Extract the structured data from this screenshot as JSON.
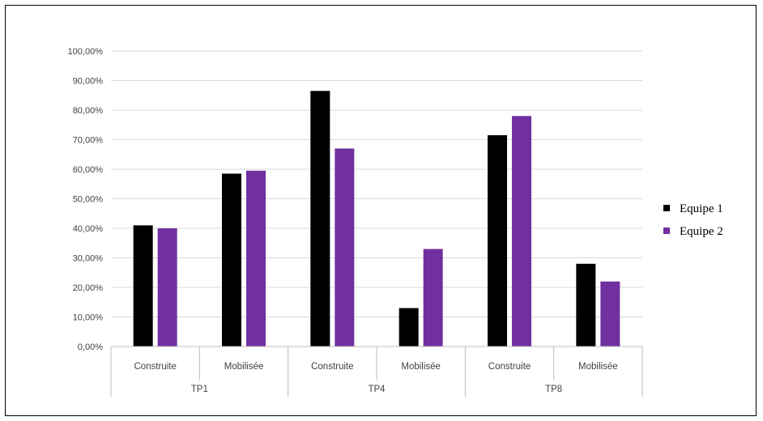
{
  "chart_data": {
    "type": "bar",
    "title": "",
    "xlabel": "",
    "ylabel": "",
    "ylim": [
      0,
      100
    ],
    "yticks": [
      0,
      10,
      20,
      30,
      40,
      50,
      60,
      70,
      80,
      90,
      100
    ],
    "ytick_labels": [
      "0,00%",
      "10,00%",
      "20,00%",
      "30,00%",
      "40,00%",
      "50,00%",
      "60,00%",
      "70,00%",
      "80,00%",
      "90,00%",
      "100,00%"
    ],
    "categories": [
      "Construite",
      "Mobilisée",
      "Construite",
      "Mobilisée",
      "Construite",
      "Mobilisée"
    ],
    "groups": [
      {
        "label": "TP1",
        "span": 2
      },
      {
        "label": "TP4",
        "span": 2
      },
      {
        "label": "TP8",
        "span": 2
      }
    ],
    "series": [
      {
        "name": "Equipe 1",
        "color": "#000000",
        "values": [
          41,
          58.5,
          86.5,
          13,
          71.5,
          28
        ]
      },
      {
        "name": "Equipe 2",
        "color": "#7030A0",
        "values": [
          40,
          59.5,
          67,
          33,
          78,
          22
        ]
      }
    ],
    "grid": true,
    "legend_position": "right"
  }
}
